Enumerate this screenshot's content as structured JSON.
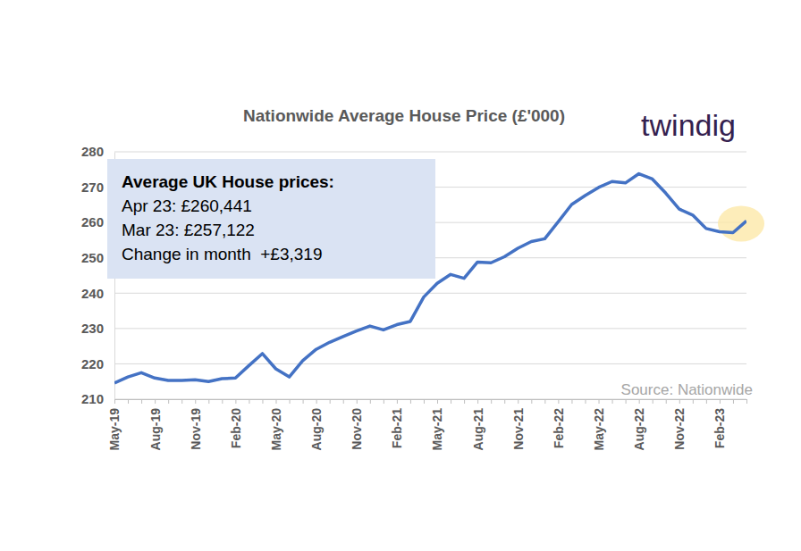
{
  "chart_data": {
    "type": "line",
    "title": "Nationwide Average House Price (£'000)",
    "logo": "twindig",
    "source": "Source: Nationwide",
    "annotation": [
      "Average UK House prices:",
      "Apr 23: £260,441",
      "Mar 23: £257,122",
      "Change in month  +£3,319"
    ],
    "categories": [
      "May-19",
      null,
      null,
      "Aug-19",
      null,
      null,
      "Nov-19",
      null,
      null,
      "Feb-20",
      null,
      null,
      "May-20",
      null,
      null,
      "Aug-20",
      null,
      null,
      "Nov-20",
      null,
      null,
      "Feb-21",
      null,
      null,
      "May-21",
      null,
      null,
      "Aug-21",
      null,
      null,
      "Nov-21",
      null,
      null,
      "Feb-22",
      null,
      null,
      "May-22",
      null,
      null,
      "Aug-22",
      null,
      null,
      "Nov-22",
      null,
      null,
      "Feb-23",
      null,
      null
    ],
    "values": [
      214.6,
      216.3,
      217.5,
      216.0,
      215.3,
      215.3,
      215.5,
      215.0,
      215.8,
      216.0,
      219.5,
      222.9,
      218.6,
      216.3,
      220.9,
      224.1,
      226.1,
      227.7,
      229.3,
      230.7,
      229.6,
      231.1,
      232.0,
      238.9,
      242.8,
      245.3,
      244.2,
      248.8,
      248.6,
      250.3,
      252.7,
      254.6,
      255.4,
      260.2,
      265.1,
      267.6,
      269.9,
      271.6,
      271.2,
      273.8,
      272.3,
      268.3,
      263.8,
      262.1,
      258.3,
      257.4,
      257.122,
      260.441
    ],
    "color": "#4472c4",
    "ylim": [
      210,
      280
    ],
    "yticks": [
      210,
      220,
      230,
      240,
      250,
      260,
      270,
      280
    ],
    "grid": true
  }
}
